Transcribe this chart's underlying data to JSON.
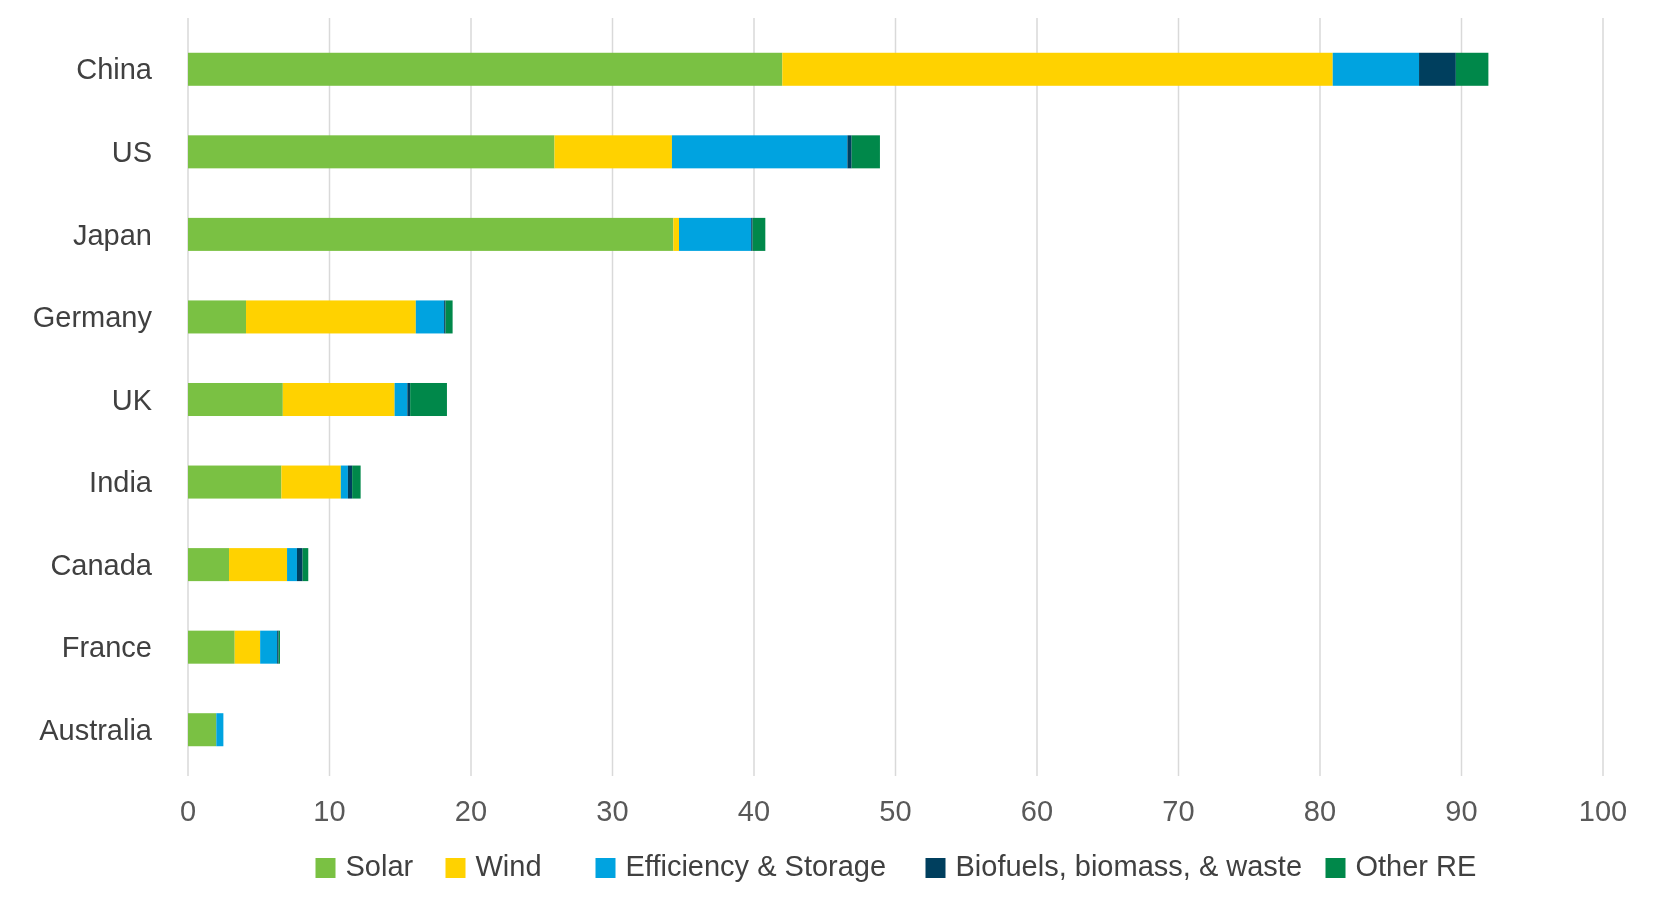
{
  "chart_data": {
    "type": "bar",
    "orientation": "horizontal",
    "stacked": true,
    "categories": [
      "China",
      "US",
      "Japan",
      "Germany",
      "UK",
      "India",
      "Canada",
      "France",
      "Australia"
    ],
    "series": [
      {
        "name": "Solar",
        "color": "#7ac143",
        "values": [
          42,
          25.9,
          34.3,
          4.1,
          6.7,
          6.6,
          2.9,
          3.3,
          2.0
        ]
      },
      {
        "name": "Wind",
        "color": "#ffd200",
        "values": [
          38.9,
          8.3,
          0.4,
          12.0,
          7.9,
          4.2,
          4.1,
          1.8,
          0
        ]
      },
      {
        "name": "Efficiency & Storage",
        "color": "#00a3e0",
        "values": [
          6.1,
          12.4,
          5.1,
          2.0,
          0.9,
          0.5,
          0.7,
          1.2,
          0.5
        ]
      },
      {
        "name": "Biofuels, biomass, & waste",
        "color": "#003f5e",
        "values": [
          2.6,
          0.3,
          0.1,
          0.1,
          0.2,
          0.3,
          0.4,
          0.1,
          0
        ]
      },
      {
        "name": "Other RE",
        "color": "#00884a",
        "values": [
          2.3,
          2.0,
          0.9,
          0.5,
          2.6,
          0.6,
          0.4,
          0.1,
          0
        ]
      }
    ],
    "xlim": [
      0,
      100
    ],
    "xticks": [
      0,
      10,
      20,
      30,
      40,
      50,
      60,
      70,
      80,
      90,
      100
    ],
    "grid": "x",
    "legend": "bottom"
  }
}
